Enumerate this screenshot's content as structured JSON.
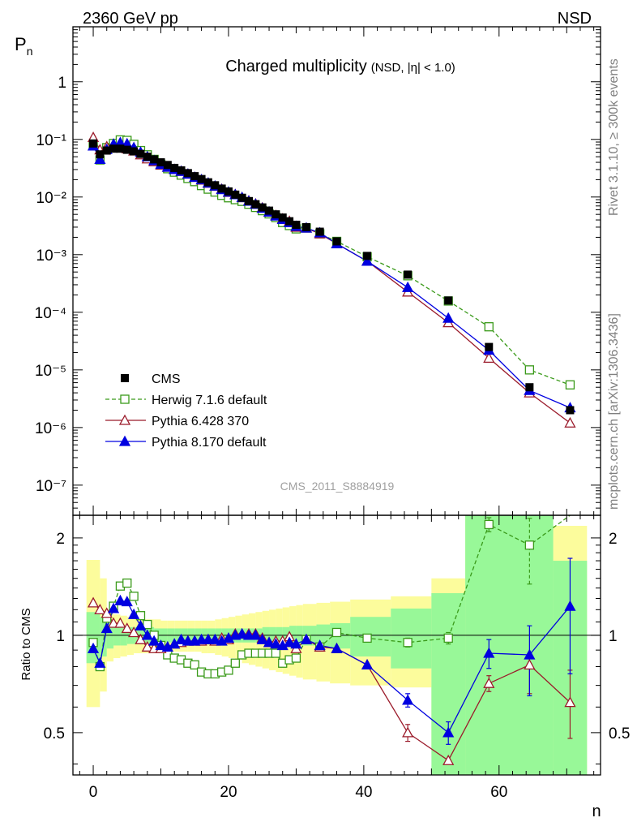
{
  "header": {
    "left_label": "2360 GeV pp",
    "right_label": "NSD"
  },
  "side_text": {
    "top": "Rivet 3.1.10, ≥ 300k events",
    "bottom": "mcplots.cern.ch [arXiv:1306.3436]"
  },
  "watermark": "CMS_2011_S8884919",
  "chart_data": {
    "type": "line",
    "title": "Charged multiplicity",
    "subtitle": "(NSD, |η| < 1.0)",
    "xlabel": "n",
    "ylabel": "P",
    "ylabel_sub": "n",
    "ratio_ylabel": "Ratio to CMS",
    "xlim": [
      -3,
      75
    ],
    "ylim": [
      3e-08,
      9
    ],
    "ratio_ylim": [
      0.37,
      2.35
    ],
    "x_ticks": [
      "0",
      "20",
      "40",
      "60"
    ],
    "y_ticks": [
      "1",
      "10⁻¹",
      "10⁻²",
      "10⁻³",
      "10⁻⁴",
      "10⁻⁵",
      "10⁻⁶",
      "10⁻⁷"
    ],
    "ratio_ticks": [
      "2",
      "1",
      "0.5"
    ],
    "legend": {
      "position": "bottom-left",
      "entries": [
        "CMS",
        "Herwig 7.1.6 default",
        "Pythia 6.428 370",
        "Pythia 8.170 default"
      ]
    },
    "colors": {
      "cms": "#000000",
      "herwig": "#3a9a1a",
      "py6": "#9b1b2b",
      "py8": "#0000e0",
      "band_inner": "#98f898",
      "band_outer": "#fcfc9c"
    },
    "x": [
      0,
      1,
      2,
      3,
      4,
      5,
      6,
      7,
      8,
      9,
      10,
      11,
      12,
      13,
      14,
      15,
      16,
      17,
      18,
      19,
      20,
      21,
      22,
      23,
      24,
      25,
      26,
      27,
      28,
      29,
      30,
      31.5,
      33.5,
      36,
      40.5,
      46.5,
      52.5,
      58.5,
      64.5,
      70.5
    ],
    "series": [
      {
        "name": "CMS",
        "values": [
          0.085,
          0.055,
          0.064,
          0.069,
          0.069,
          0.066,
          0.062,
          0.056,
          0.05,
          0.045,
          0.04,
          0.036,
          0.032,
          0.029,
          0.026,
          0.023,
          0.0205,
          0.018,
          0.016,
          0.014,
          0.0125,
          0.011,
          0.0097,
          0.0085,
          0.0075,
          0.0066,
          0.0058,
          0.005,
          0.0044,
          0.0038,
          0.0033,
          0.003,
          0.0025,
          0.0017,
          0.00095,
          0.00045,
          0.00016,
          2.5e-05,
          5e-06,
          2e-06
        ]
      },
      {
        "name": "Herwig 7.1.6 default",
        "values": [
          0.081,
          0.044,
          0.072,
          0.085,
          0.098,
          0.096,
          0.082,
          0.064,
          0.054,
          0.045,
          0.037,
          0.031,
          0.027,
          0.024,
          0.021,
          0.0185,
          0.0158,
          0.0137,
          0.0122,
          0.0107,
          0.0097,
          0.009,
          0.0084,
          0.0075,
          0.0066,
          0.0058,
          0.0051,
          0.0044,
          0.0036,
          0.0032,
          0.0028,
          0.0029,
          0.0023,
          0.0017,
          0.00092,
          0.00043,
          0.000157,
          5.6e-05,
          1e-05,
          5.5e-06
        ]
      },
      {
        "name": "Pythia 6.428 370",
        "values": [
          0.108,
          0.066,
          0.075,
          0.075,
          0.075,
          0.069,
          0.063,
          0.054,
          0.046,
          0.041,
          0.036,
          0.033,
          0.03,
          0.028,
          0.025,
          0.022,
          0.0197,
          0.0174,
          0.0154,
          0.0137,
          0.0121,
          0.0111,
          0.0098,
          0.0086,
          0.0076,
          0.0065,
          0.0055,
          0.0048,
          0.0042,
          0.0038,
          0.003,
          0.0029,
          0.0023,
          0.00155,
          0.00077,
          0.000225,
          6.6e-05,
          1.6e-05,
          4e-06,
          1.2e-06
        ]
      },
      {
        "name": "Pythia 8.170 default",
        "values": [
          0.077,
          0.045,
          0.067,
          0.083,
          0.088,
          0.084,
          0.072,
          0.06,
          0.05,
          0.043,
          0.037,
          0.033,
          0.03,
          0.028,
          0.025,
          0.022,
          0.02,
          0.0175,
          0.0155,
          0.0135,
          0.0122,
          0.011,
          0.0098,
          0.0085,
          0.0075,
          0.0064,
          0.0055,
          0.0047,
          0.0041,
          0.0036,
          0.0031,
          0.0029,
          0.0024,
          0.00155,
          0.00077,
          0.00027,
          7.9e-05,
          2.2e-05,
          4.4e-06,
          2.2e-06
        ]
      }
    ],
    "ratio_series": [
      {
        "name": "Herwig 7.1.6 default",
        "values": [
          0.95,
          0.8,
          1.13,
          1.23,
          1.42,
          1.45,
          1.32,
          1.15,
          1.08,
          1.0,
          0.93,
          0.87,
          0.85,
          0.84,
          0.82,
          0.81,
          0.77,
          0.76,
          0.76,
          0.77,
          0.78,
          0.82,
          0.87,
          0.88,
          0.88,
          0.88,
          0.88,
          0.88,
          0.82,
          0.84,
          0.85,
          0.97,
          0.92,
          1.02,
          0.98,
          0.95,
          0.98,
          2.2,
          1.9,
          2.35
        ]
      },
      {
        "name": "Pythia 6.428 370",
        "values": [
          1.26,
          1.2,
          1.17,
          1.09,
          1.09,
          1.05,
          1.02,
          0.97,
          0.92,
          0.91,
          0.91,
          0.92,
          0.94,
          0.95,
          0.96,
          0.96,
          0.96,
          0.97,
          0.96,
          0.98,
          0.97,
          1.01,
          1.01,
          1.01,
          1.01,
          0.98,
          0.95,
          0.96,
          0.96,
          0.99,
          0.91,
          0.97,
          0.92,
          0.91,
          0.81,
          0.5,
          0.41,
          0.71,
          0.81,
          0.62
        ]
      },
      {
        "name": "Pythia 8.170 default",
        "values": [
          0.91,
          0.82,
          1.05,
          1.21,
          1.28,
          1.27,
          1.16,
          1.07,
          1.0,
          0.96,
          0.93,
          0.92,
          0.94,
          0.97,
          0.96,
          0.96,
          0.97,
          0.97,
          0.97,
          0.96,
          0.98,
          1.0,
          1.01,
          1.0,
          1.0,
          0.97,
          0.95,
          0.94,
          0.93,
          0.95,
          0.94,
          0.97,
          0.93,
          0.91,
          0.81,
          0.63,
          0.5,
          0.88,
          0.87,
          1.23
        ]
      }
    ],
    "ratio_errors": [
      {
        "name": "Herwig 7.1.6 default",
        "index": [
          35,
          36,
          37,
          38
        ],
        "low": [
          0.92,
          0.94,
          2.09,
          1.44
        ],
        "high": [
          0.98,
          1.02,
          2.31,
          2.3
        ]
      },
      {
        "name": "Pythia 6.428 370",
        "index": [
          35,
          37,
          38,
          39
        ],
        "low": [
          0.47,
          0.67,
          0.66,
          0.48
        ],
        "high": [
          0.53,
          0.75,
          0.86,
          0.78
        ]
      },
      {
        "name": "Pythia 8.170 default",
        "index": [
          35,
          36,
          37,
          38,
          39
        ],
        "low": [
          0.6,
          0.46,
          0.79,
          0.65,
          0.76
        ],
        "high": [
          0.66,
          0.54,
          0.97,
          1.07,
          1.73
        ]
      }
    ],
    "bands": {
      "edges": [
        -1,
        1,
        2,
        3,
        4,
        5,
        6,
        7,
        8,
        9,
        10,
        11,
        12,
        13,
        14,
        15,
        16,
        17,
        18,
        19,
        20,
        21,
        22,
        23,
        24,
        25,
        26,
        27,
        28,
        29,
        30,
        31,
        33,
        35,
        38,
        44,
        50,
        55,
        62,
        68,
        73
      ],
      "inner_low": [
        0.82,
        0.86,
        0.91,
        0.93,
        0.93,
        0.94,
        0.94,
        0.94,
        0.94,
        0.95,
        0.95,
        0.95,
        0.95,
        0.95,
        0.95,
        0.95,
        0.95,
        0.95,
        0.95,
        0.95,
        0.95,
        0.95,
        0.95,
        0.95,
        0.95,
        0.94,
        0.94,
        0.94,
        0.94,
        0.94,
        0.93,
        0.93,
        0.92,
        0.91,
        0.86,
        0.79,
        0.37,
        0.37,
        0.37,
        0.37
      ],
      "inner_high": [
        1.18,
        1.14,
        1.09,
        1.07,
        1.07,
        1.06,
        1.06,
        1.06,
        1.06,
        1.05,
        1.05,
        1.05,
        1.05,
        1.05,
        1.05,
        1.05,
        1.05,
        1.05,
        1.05,
        1.05,
        1.05,
        1.05,
        1.05,
        1.05,
        1.05,
        1.06,
        1.06,
        1.06,
        1.06,
        1.07,
        1.07,
        1.07,
        1.08,
        1.09,
        1.14,
        1.21,
        1.35,
        2.35,
        2.35,
        1.7
      ],
      "outer_low": [
        0.6,
        0.67,
        0.83,
        0.85,
        0.86,
        0.87,
        0.88,
        0.88,
        0.88,
        0.88,
        0.88,
        0.89,
        0.89,
        0.89,
        0.89,
        0.89,
        0.88,
        0.88,
        0.87,
        0.86,
        0.85,
        0.84,
        0.82,
        0.81,
        0.8,
        0.79,
        0.78,
        0.77,
        0.76,
        0.75,
        0.74,
        0.73,
        0.72,
        0.71,
        0.7,
        0.69,
        0.45,
        0.37,
        0.37,
        0.37
      ],
      "outer_high": [
        1.71,
        1.5,
        1.2,
        1.16,
        1.15,
        1.14,
        1.13,
        1.12,
        1.12,
        1.12,
        1.11,
        1.11,
        1.11,
        1.11,
        1.11,
        1.11,
        1.11,
        1.11,
        1.12,
        1.13,
        1.14,
        1.15,
        1.16,
        1.17,
        1.18,
        1.19,
        1.2,
        1.21,
        1.22,
        1.23,
        1.24,
        1.25,
        1.26,
        1.27,
        1.29,
        1.32,
        1.5,
        2.35,
        2.35,
        2.18
      ]
    }
  }
}
